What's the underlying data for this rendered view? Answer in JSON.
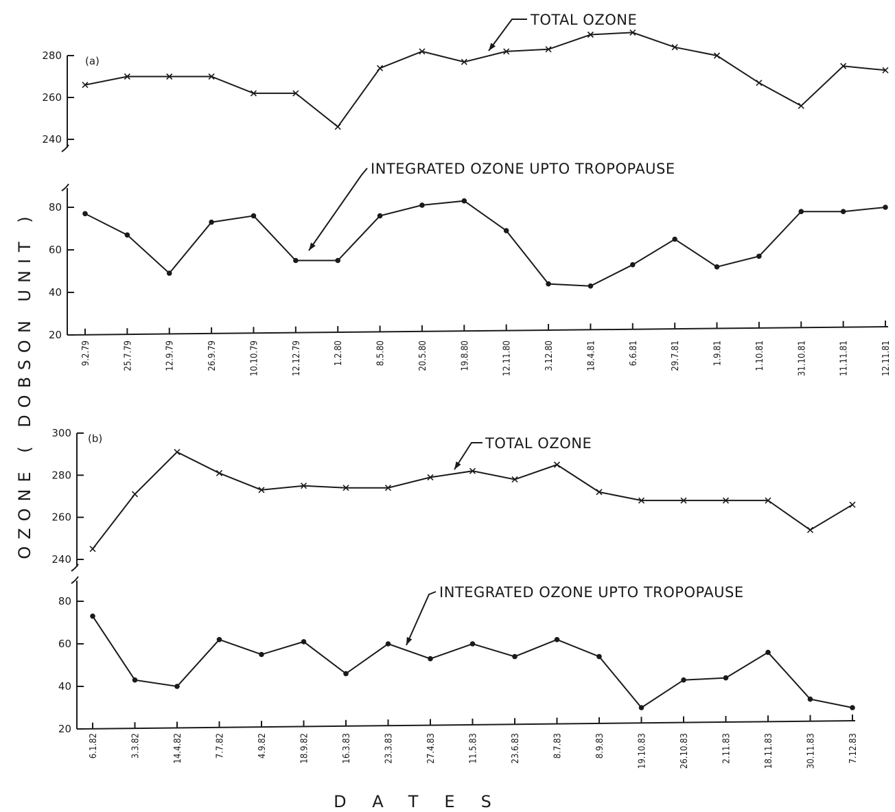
{
  "y_axis_label": "OZONE ( DOBSON UNIT )",
  "x_axis_label": "DATES",
  "chart_data": [
    {
      "panel": "(a)",
      "type": "line",
      "categories": [
        "9.2.79",
        "25.7.79",
        "12.9.79",
        "26.9.79",
        "10.10.79",
        "12.12.79",
        "1.2.80",
        "8.5.80",
        "20.5.80",
        "19.8.80",
        "12.11.80",
        "3.12.80",
        "18.4.81",
        "6.6.81",
        "29.7.81",
        "1.9.81",
        "1.10.81",
        "31.10.81",
        "11.11.81",
        "12.11.81"
      ],
      "upper": {
        "name": "TOTAL OZONE",
        "marker": "x",
        "yticks": [
          240,
          260,
          280
        ],
        "values": [
          266,
          270,
          270,
          270,
          262,
          262,
          246,
          274,
          282,
          277,
          282,
          283,
          290,
          291,
          284,
          280,
          267,
          256,
          275,
          273
        ]
      },
      "lower": {
        "name": "INTEGRATED OZONE UPTO TROPOPAUSE",
        "marker": "dot",
        "yticks": [
          20,
          40,
          60,
          80
        ],
        "values": [
          77,
          67,
          49,
          73,
          76,
          55,
          55,
          76,
          81,
          83,
          69,
          44,
          43,
          53,
          65,
          52,
          57,
          78,
          78,
          80
        ]
      }
    },
    {
      "panel": "(b)",
      "type": "line",
      "categories": [
        "6.1.82",
        "3.3.82",
        "14.4.82",
        "7.7.82",
        "4.9.82",
        "18.9.82",
        "16.3.83",
        "23.3.83",
        "27.4.83",
        "11.5.83",
        "23.6.83",
        "8.7.83",
        "8.9.83",
        "19.10.83",
        "26.10.83",
        "2.11.83",
        "18.11.83",
        "30.11.83",
        "7.12.83"
      ],
      "upper": {
        "name": "TOTAL OZONE",
        "marker": "x",
        "yticks": [
          240,
          260,
          280,
          300
        ],
        "values": [
          245,
          271,
          291,
          281,
          273,
          275,
          274,
          274,
          279,
          282,
          278,
          285,
          272,
          268,
          268,
          268,
          268,
          254,
          266
        ]
      },
      "lower": {
        "name": "INTEGRATED OZONE UPTO TROPOPAUSE",
        "marker": "dot",
        "yticks": [
          20,
          40,
          60,
          80
        ],
        "values": [
          73,
          43,
          40,
          62,
          55,
          61,
          46,
          60,
          53,
          60,
          54,
          62,
          54,
          30,
          43,
          44,
          56,
          34,
          30
        ]
      }
    }
  ]
}
